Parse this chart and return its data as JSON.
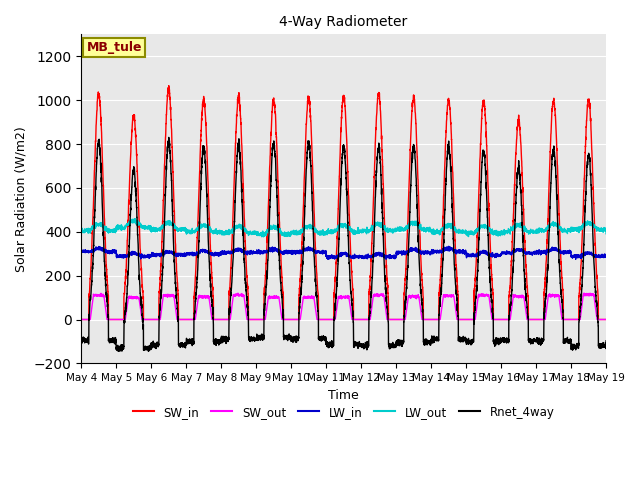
{
  "title": "4-Way Radiometer",
  "xlabel": "Time",
  "ylabel": "Solar Radiation (W/m2)",
  "ylim": [
    -200,
    1300
  ],
  "yticks": [
    -200,
    0,
    200,
    400,
    600,
    800,
    1000,
    1200
  ],
  "x_labels": [
    "May 4",
    "May 5",
    "May 6",
    "May 7",
    "May 8",
    "May 9",
    "May 10",
    "May 11",
    "May 12",
    "May 13",
    "May 14",
    "May 15",
    "May 16",
    "May 17",
    "May 18",
    "May 19"
  ],
  "annotation_text": "MB_tule",
  "annotation_bg": "#FFFF99",
  "annotation_border": "#8B8B00",
  "bg_color": "#E8E8E8",
  "line_colors": {
    "SW_in": "#FF0000",
    "SW_out": "#FF00FF",
    "LW_in": "#0000CC",
    "LW_out": "#00CCCC",
    "Rnet_4way": "#000000"
  },
  "n_days": 15,
  "points_per_day": 288,
  "day_peaks_sw_in": [
    1030,
    930,
    1050,
    1000,
    1010,
    1000,
    1010,
    1020,
    1030,
    1010,
    1000,
    995,
    905,
    1000,
    1000
  ],
  "lw_in_base": 295,
  "lw_out_base": 390
}
